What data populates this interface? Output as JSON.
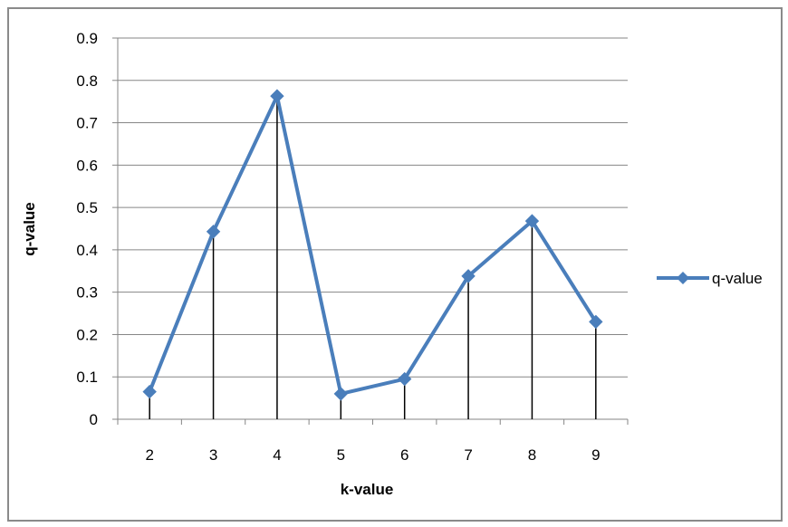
{
  "chart_data": {
    "type": "line",
    "title": "",
    "xlabel": "k-value",
    "ylabel": "q-value",
    "categories": [
      "2",
      "3",
      "4",
      "5",
      "6",
      "7",
      "8",
      "9"
    ],
    "series": [
      {
        "name": "q-value",
        "values": [
          0.065,
          0.443,
          0.763,
          0.06,
          0.095,
          0.338,
          0.468,
          0.23
        ],
        "color": "#4a7ebb"
      }
    ],
    "yticks": [
      "0",
      "0.1",
      "0.2",
      "0.3",
      "0.4",
      "0.5",
      "0.6",
      "0.7",
      "0.8",
      "0.9"
    ],
    "ylim": [
      0,
      0.9
    ],
    "grid": "horizontal",
    "drop_lines": true,
    "marker": "diamond",
    "legend_position": "right"
  }
}
